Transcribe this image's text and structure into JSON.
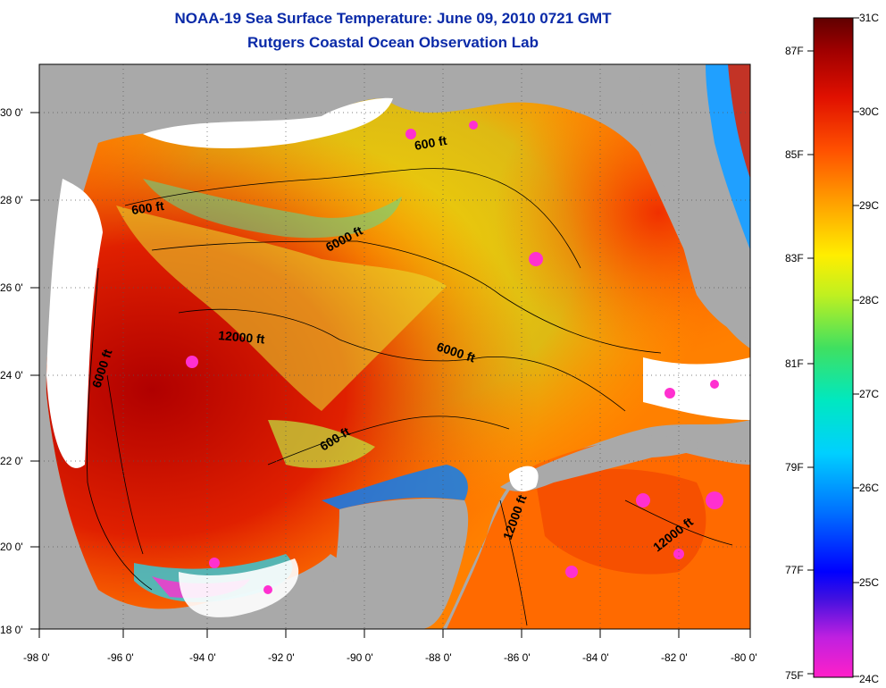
{
  "title": {
    "line1": "NOAA-19 Sea Surface Temperature:  June 09, 2010 0721 GMT",
    "line2": "Rutgers Coastal Ocean Observation Lab"
  },
  "map": {
    "region": "Gulf of Mexico",
    "lon_range": [
      -98,
      -80
    ],
    "lat_range": [
      18,
      31
    ],
    "x_ticks": [
      "-98 0'",
      "-96 0'",
      "-94 0'",
      "-92 0'",
      "-90 0'",
      "-88 0'",
      "-86 0'",
      "-84 0'",
      "-82 0'",
      "-80 0'"
    ],
    "y_ticks": [
      "30 0'",
      "28 0'",
      "26 0'",
      "24 0'",
      "22 0'",
      "20 0'",
      "18 0'"
    ],
    "land_color": "#a9a9a9",
    "cloud_color": "#ffffff",
    "contour_labels": [
      "600 ft",
      "600 ft",
      "6000 ft",
      "12000 ft",
      "6000 ft",
      "6000 ft",
      "600 ft",
      "12000 ft",
      "12000 ft"
    ]
  },
  "colorbar": {
    "celsius_labels": [
      "31C",
      "30C",
      "29C",
      "28C",
      "27C",
      "26C",
      "25C",
      "24C"
    ],
    "fahrenheit_labels": [
      "87F",
      "85F",
      "83F",
      "81F",
      "79F",
      "77F",
      "75F"
    ],
    "stops": [
      "#ff20c8",
      "#8040e0",
      "#0000ff",
      "#00a0ff",
      "#00e0e0",
      "#20e090",
      "#c0f020",
      "#ffee00",
      "#ffa000",
      "#ff5000",
      "#e01000",
      "#a00000",
      "#600000"
    ]
  }
}
